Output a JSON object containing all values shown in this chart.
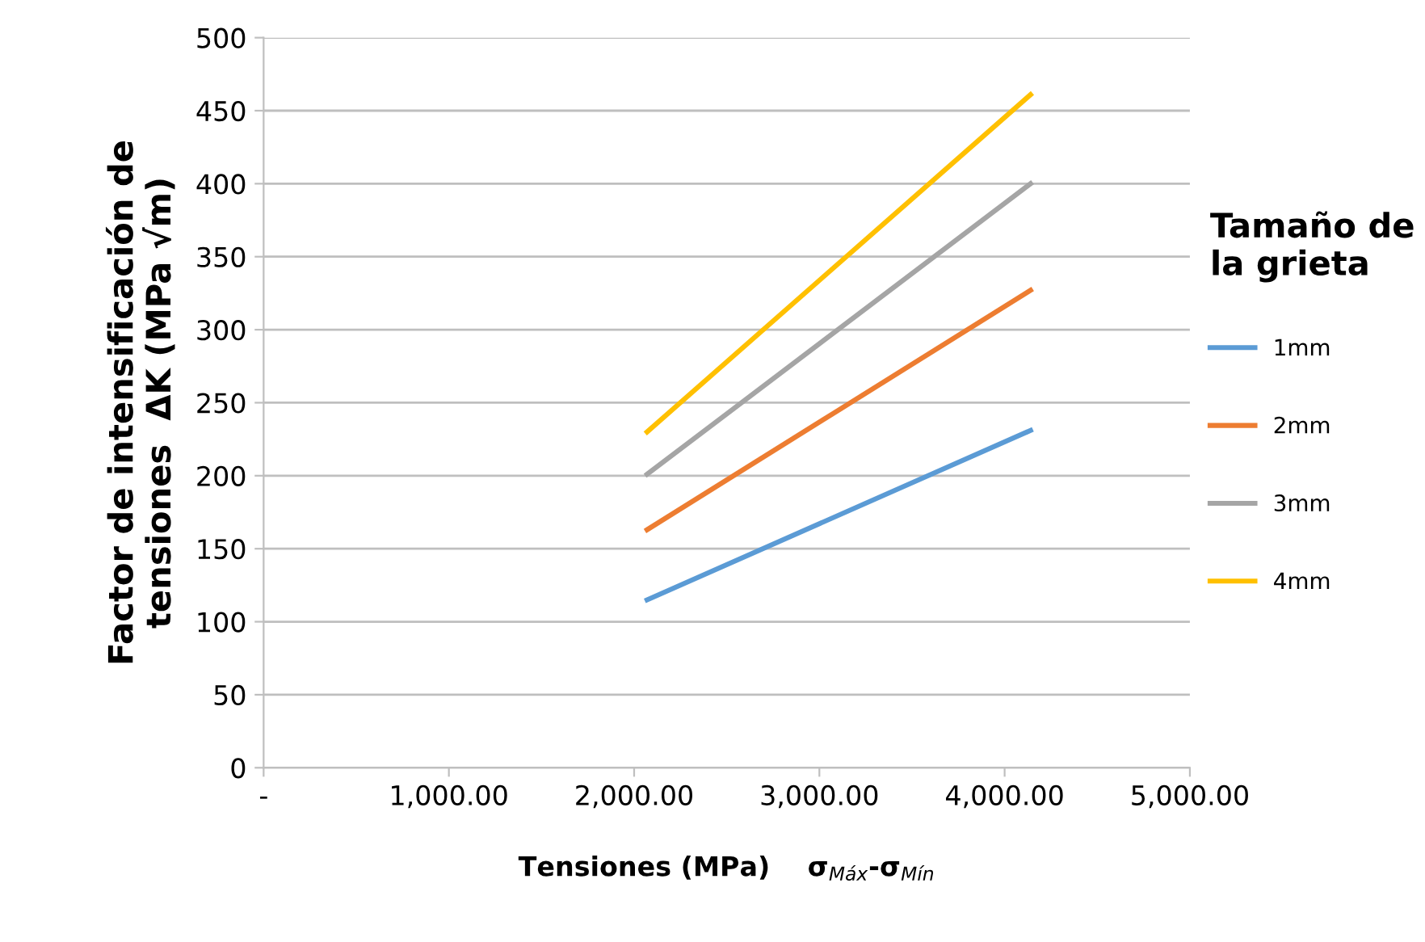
{
  "chart_data": {
    "type": "line",
    "xlabel": "Tensiones (MPa)    σ$_{Máx}$-σ$_{Mín}$",
    "ylabel": "Factor de intensificación de\ntensiones  ΔK (MPa √m)",
    "legend_title": "Tamaño de\nla grieta",
    "x": [
      2070,
      4140
    ],
    "series": [
      {
        "name": "1mm",
        "color": "#5b9bd5",
        "values": [
          115,
          231
        ]
      },
      {
        "name": "2mm",
        "color": "#ed7d31",
        "values": [
          163,
          327
        ]
      },
      {
        "name": "3mm",
        "color": "#a5a5a5",
        "values": [
          201,
          400
        ]
      },
      {
        "name": "4mm",
        "color": "#ffc000",
        "values": [
          230,
          461
        ]
      }
    ],
    "xlim": [
      0,
      5000
    ],
    "xticks": [
      {
        "value": 0,
        "label": "-"
      },
      {
        "value": 1000,
        "label": "1,000.00"
      },
      {
        "value": 2000,
        "label": "2,000.00"
      },
      {
        "value": 3000,
        "label": "3,000.00"
      },
      {
        "value": 4000,
        "label": "4,000.00"
      },
      {
        "value": 5000,
        "label": "5,000.00"
      }
    ],
    "ylim": [
      0,
      500
    ],
    "yticks": [
      0,
      50,
      100,
      150,
      200,
      250,
      300,
      350,
      400,
      450,
      500
    ],
    "grid": "y",
    "legend": "right",
    "marker": "none",
    "line_style": "solid"
  }
}
